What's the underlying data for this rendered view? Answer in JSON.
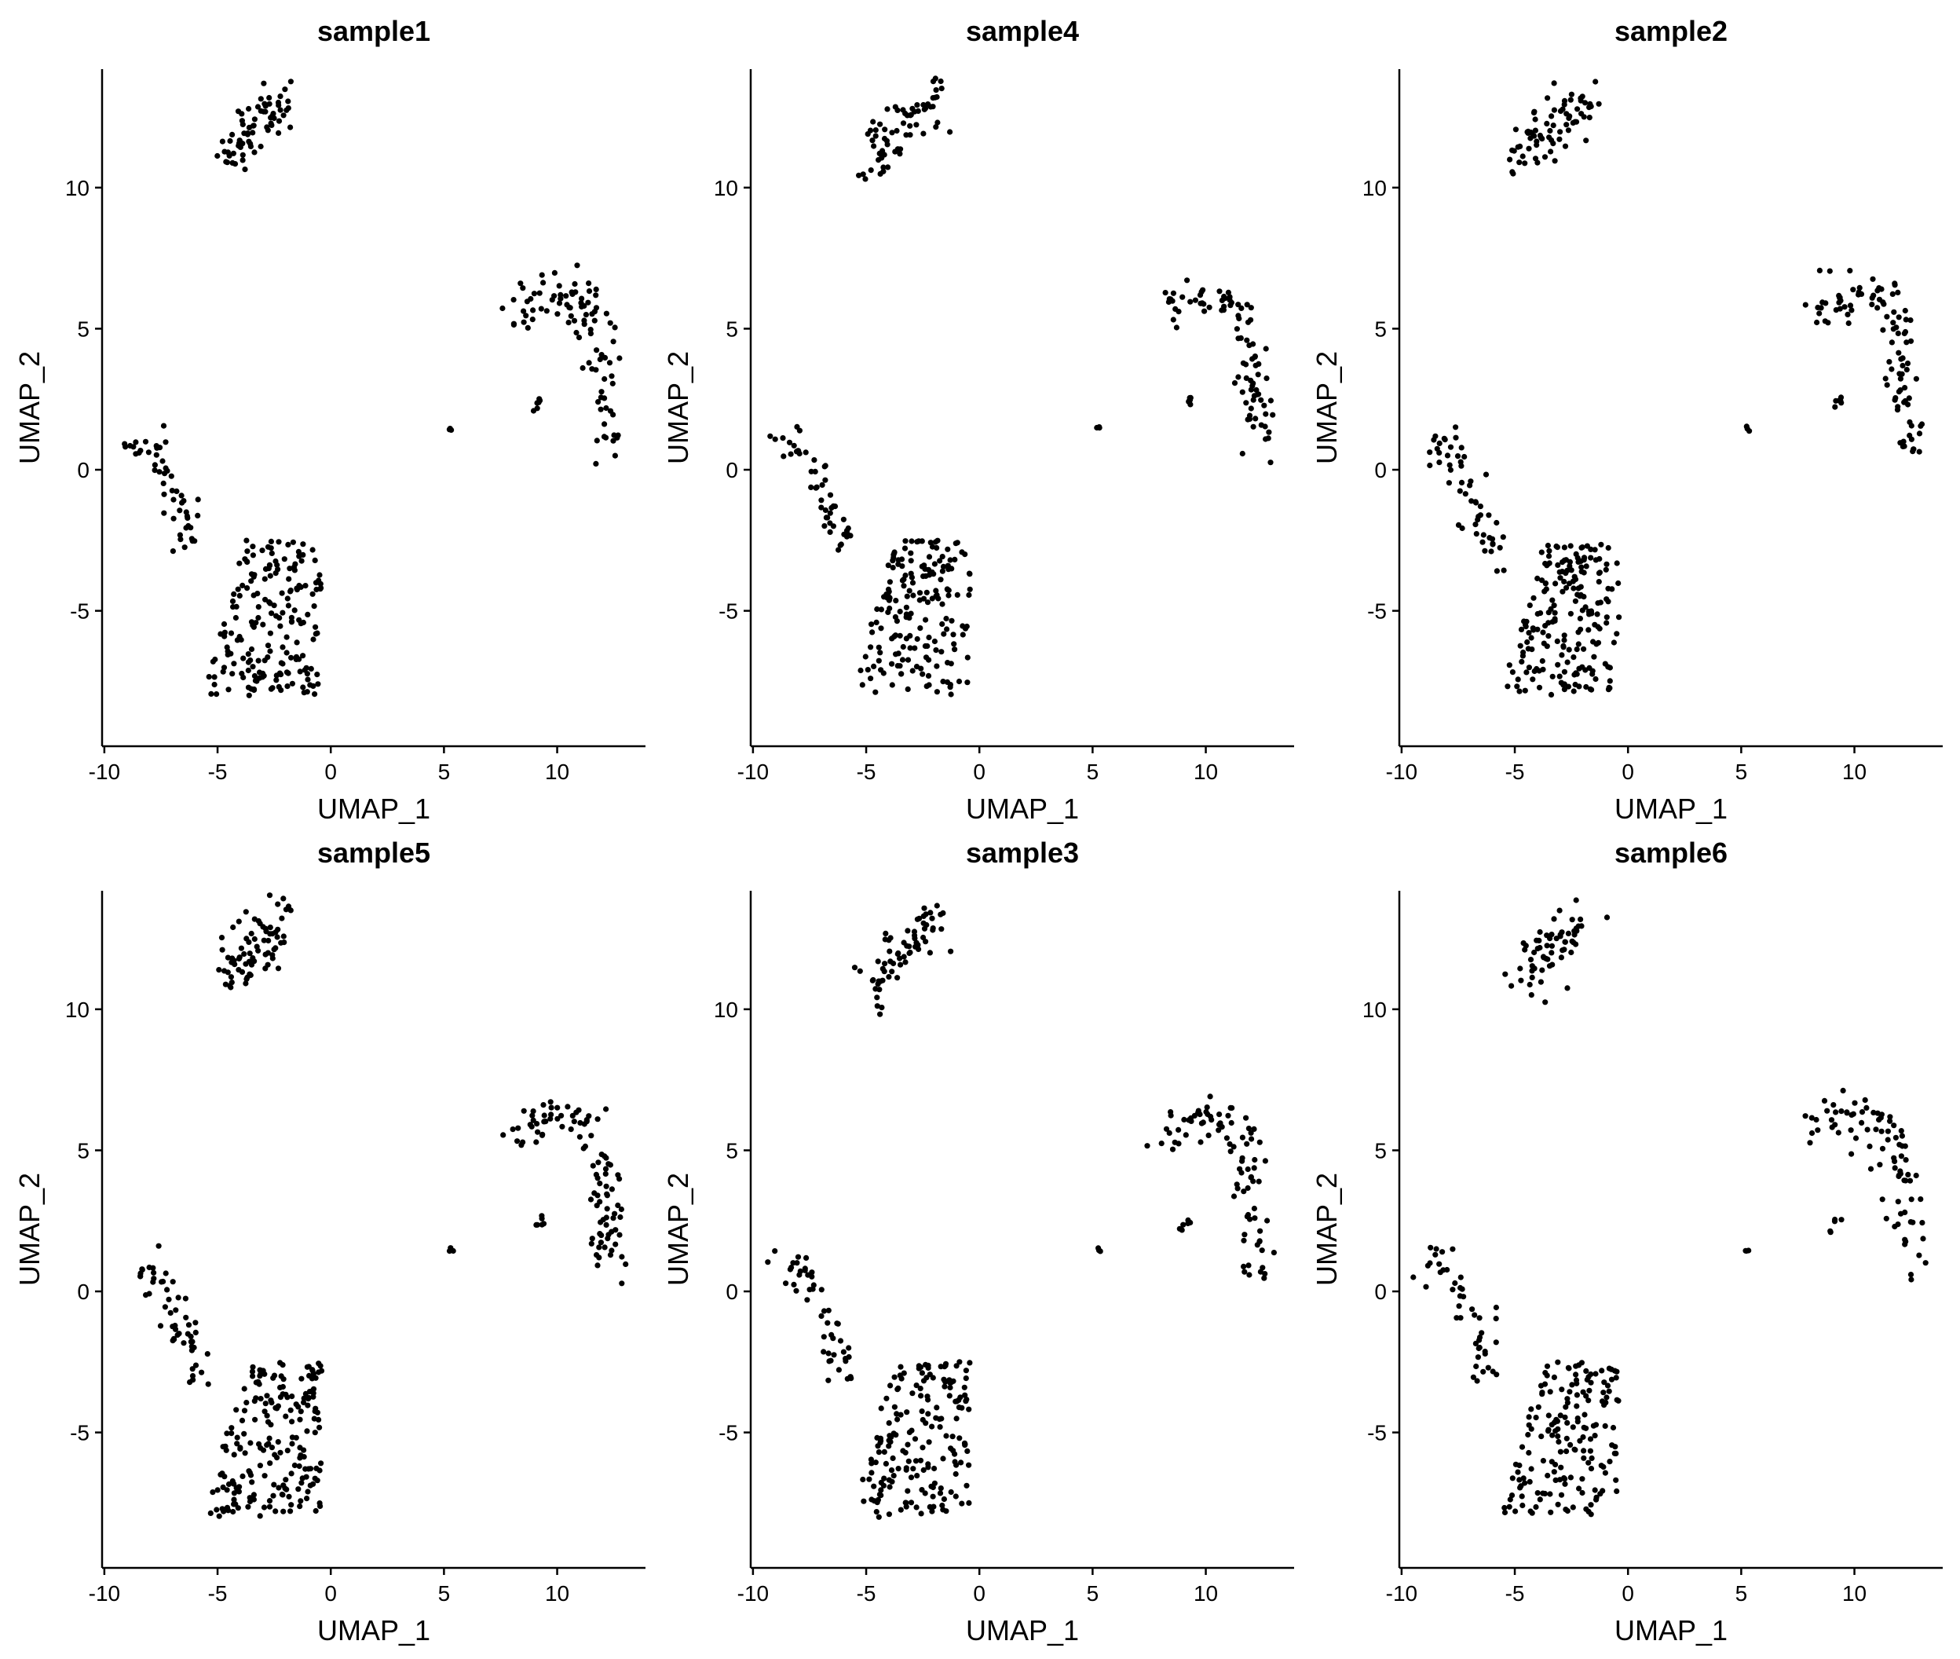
{
  "chart_data": [
    {
      "type": "scatter",
      "title": "sample1",
      "xlabel": "UMAP_1",
      "ylabel": "UMAP_2",
      "xlim": [
        -10.1,
        13.9
      ],
      "ylim": [
        -9.8,
        14.2
      ],
      "xticks": [
        -10,
        -5,
        0,
        5,
        10
      ],
      "xtick_labels": [
        "-10",
        "-5",
        "0",
        "5",
        "10"
      ],
      "yticks": [
        -5,
        0,
        5,
        10
      ],
      "ytick_labels": [
        "-5",
        "0",
        "5",
        "10"
      ],
      "point_color": "#000000",
      "seed": 101,
      "density": 1.0,
      "grid": false
    },
    {
      "type": "scatter",
      "title": "sample4",
      "xlabel": "UMAP_1",
      "ylabel": "UMAP_2",
      "xlim": [
        -10.1,
        13.9
      ],
      "ylim": [
        -9.8,
        14.2
      ],
      "xticks": [
        -10,
        -5,
        0,
        5,
        10
      ],
      "xtick_labels": [
        "-10",
        "-5",
        "0",
        "5",
        "10"
      ],
      "yticks": [
        -5,
        0,
        5,
        10
      ],
      "ytick_labels": [
        "-5",
        "0",
        "5",
        "10"
      ],
      "point_color": "#000000",
      "seed": 202,
      "density": 0.95,
      "grid": false
    },
    {
      "type": "scatter",
      "title": "sample2",
      "xlabel": "UMAP_1",
      "ylabel": "UMAP_2",
      "xlim": [
        -10.1,
        13.9
      ],
      "ylim": [
        -9.8,
        14.2
      ],
      "xticks": [
        -10,
        -5,
        0,
        5,
        10
      ],
      "xtick_labels": [
        "-10",
        "-5",
        "0",
        "5",
        "10"
      ],
      "yticks": [
        -5,
        0,
        5,
        10
      ],
      "ytick_labels": [
        "-5",
        "0",
        "5",
        "10"
      ],
      "point_color": "#000000",
      "seed": 303,
      "density": 1.05,
      "grid": false
    },
    {
      "type": "scatter",
      "title": "sample5",
      "xlabel": "UMAP_1",
      "ylabel": "UMAP_2",
      "xlim": [
        -10.1,
        13.9
      ],
      "ylim": [
        -9.8,
        14.2
      ],
      "xticks": [
        -10,
        -5,
        0,
        5,
        10
      ],
      "xtick_labels": [
        "-10",
        "-5",
        "0",
        "5",
        "10"
      ],
      "yticks": [
        -5,
        0,
        5,
        10
      ],
      "ytick_labels": [
        "-5",
        "0",
        "5",
        "10"
      ],
      "point_color": "#000000",
      "seed": 404,
      "density": 1.05,
      "grid": false
    },
    {
      "type": "scatter",
      "title": "sample3",
      "xlabel": "UMAP_1",
      "ylabel": "UMAP_2",
      "xlim": [
        -10.1,
        13.9
      ],
      "ylim": [
        -9.8,
        14.2
      ],
      "xticks": [
        -10,
        -5,
        0,
        5,
        10
      ],
      "xtick_labels": [
        "-10",
        "-5",
        "0",
        "5",
        "10"
      ],
      "yticks": [
        -5,
        0,
        5,
        10
      ],
      "ytick_labels": [
        "-5",
        "0",
        "5",
        "10"
      ],
      "point_color": "#000000",
      "seed": 505,
      "density": 0.95,
      "grid": false
    },
    {
      "type": "scatter",
      "title": "sample6",
      "xlabel": "UMAP_1",
      "ylabel": "UMAP_2",
      "xlim": [
        -10.1,
        13.9
      ],
      "ylim": [
        -9.8,
        14.2
      ],
      "xticks": [
        -10,
        -5,
        0,
        5,
        10
      ],
      "xtick_labels": [
        "-10",
        "-5",
        "0",
        "5",
        "10"
      ],
      "yticks": [
        -5,
        0,
        5,
        10
      ],
      "ytick_labels": [
        "-5",
        "0",
        "5",
        "10"
      ],
      "point_color": "#000000",
      "seed": 606,
      "density": 0.9,
      "grid": false
    }
  ],
  "clusters": [
    {
      "name": "top-cluster",
      "n": 70,
      "x0": -4.8,
      "y0": 11.1,
      "x1": -1.8,
      "y1": 13.2,
      "sx": 0.35,
      "sy": 0.5
    },
    {
      "name": "right-arc",
      "n": 95,
      "arc": [
        [
          8.0,
          5.4
        ],
        [
          9.5,
          6.2
        ],
        [
          11.0,
          6.1
        ],
        [
          11.8,
          5.2
        ],
        [
          12.0,
          3.6
        ],
        [
          12.2,
          2.2
        ],
        [
          12.5,
          0.7
        ]
      ],
      "sx": 0.4,
      "sy": 0.4
    },
    {
      "name": "right-spur",
      "n": 6,
      "x0": 8.9,
      "y0": 2.1,
      "x1": 9.4,
      "y1": 2.6,
      "sx": 0.08,
      "sy": 0.1
    },
    {
      "name": "isolated-point",
      "n": 3,
      "cx": 5.3,
      "cy": 1.45,
      "sx": 0.04,
      "sy": 0.05
    },
    {
      "name": "left-tail",
      "n": 50,
      "arc": [
        [
          -8.8,
          0.9
        ],
        [
          -7.8,
          0.8
        ],
        [
          -7.0,
          -0.6
        ],
        [
          -6.4,
          -1.8
        ],
        [
          -6.0,
          -3.0
        ]
      ],
      "sx": 0.35,
      "sy": 0.35
    },
    {
      "name": "left-blob",
      "n": 190,
      "blob": [
        -5.6,
        -8.0,
        -0.4,
        -2.5
      ]
    }
  ]
}
